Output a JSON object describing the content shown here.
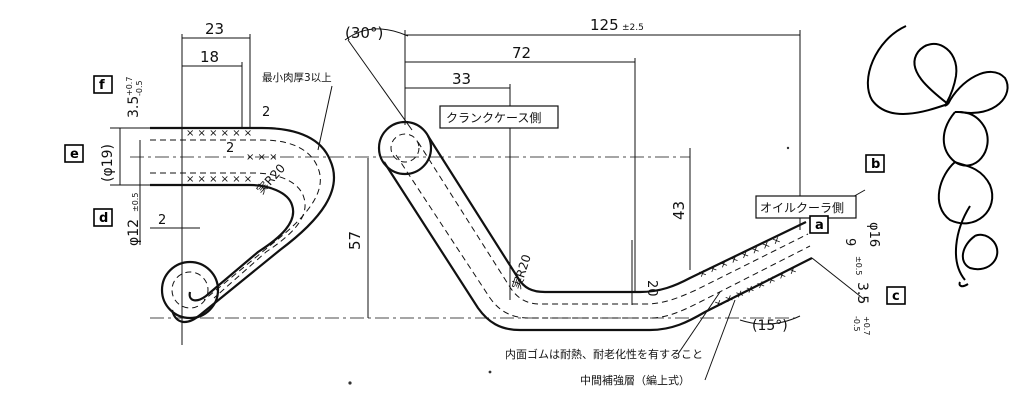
{
  "dimensions": {
    "total_length": "125",
    "total_length_tol": "±2.5",
    "len_72": "72",
    "len_33": "33",
    "angle_30": "(30°)",
    "w_23": "23",
    "w_18": "18",
    "min_thickness": "最小肉厚3以上",
    "t_2_top": "2",
    "t_2_mid": "2",
    "t_2_bottom": "2",
    "dia_19": "(φ19)",
    "dia_12": "φ12",
    "dia_12_tol": "±0.5",
    "left_35": "3.5",
    "left_35_tol_upper": "+0.7",
    "left_35_tol_lower": "-0.5",
    "radius_left": "実R20",
    "height_57": "57",
    "radius_mid": "実R20",
    "height_43": "43",
    "height_20": "20",
    "dia_16": "φ16",
    "dia_9": "9",
    "dia_9_tol": "±0.5",
    "right_35": "3.5",
    "right_35_tol_upper": "+0.7",
    "right_35_tol_lower": "-0.5",
    "angle_15": "(15°)"
  },
  "labels": {
    "crankcase_side": "クランクケース側",
    "oil_cooler_side": "オイルクーラ側",
    "note_inner": "内面ゴムは耐熱、耐老化性を有すること",
    "note_middle": "中間補強層（編上式）"
  },
  "tags": {
    "a": "a",
    "b": "b",
    "c": "c",
    "d": "d",
    "e": "e",
    "f": "f"
  }
}
